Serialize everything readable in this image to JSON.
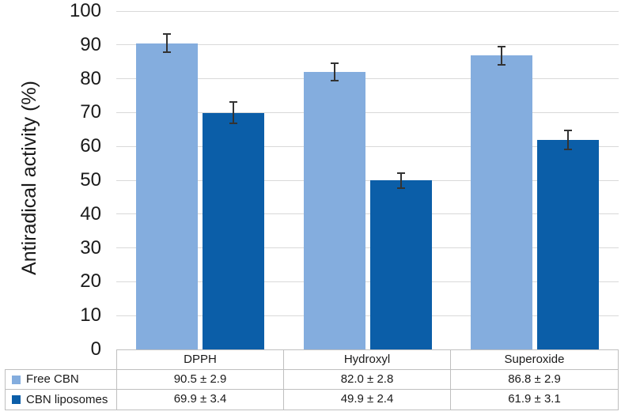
{
  "chart_data": {
    "type": "bar",
    "title": "",
    "ylabel": "Antiradical activity (%)",
    "xlabel": "",
    "ylim": [
      0,
      100
    ],
    "yticks": [
      0,
      10,
      20,
      30,
      40,
      50,
      60,
      70,
      80,
      90,
      100
    ],
    "grid": true,
    "legend_position": "data-table-left",
    "categories": [
      "DPPH",
      "Hydroxyl",
      "Superoxide"
    ],
    "series": [
      {
        "name": "Free CBN",
        "color": "#84ADDE",
        "values": [
          90.5,
          82.0,
          86.8
        ],
        "errors": [
          2.9,
          2.8,
          2.9
        ],
        "cell_labels": [
          "90.5 ± 2.9",
          "82.0 ± 2.8",
          "86.8 ± 2.9"
        ]
      },
      {
        "name": "CBN liposomes",
        "color": "#0B5EA8",
        "values": [
          69.9,
          49.9,
          61.9
        ],
        "errors": [
          3.4,
          2.4,
          3.1
        ],
        "cell_labels": [
          "69.9 ± 3.4",
          "49.9 ± 2.4",
          "61.9 ± 3.1"
        ]
      }
    ],
    "colors": {
      "gridline": "#D9D9D9",
      "table_border": "#BFBFBF",
      "error_bar": "#333333",
      "text": "#262626"
    }
  }
}
